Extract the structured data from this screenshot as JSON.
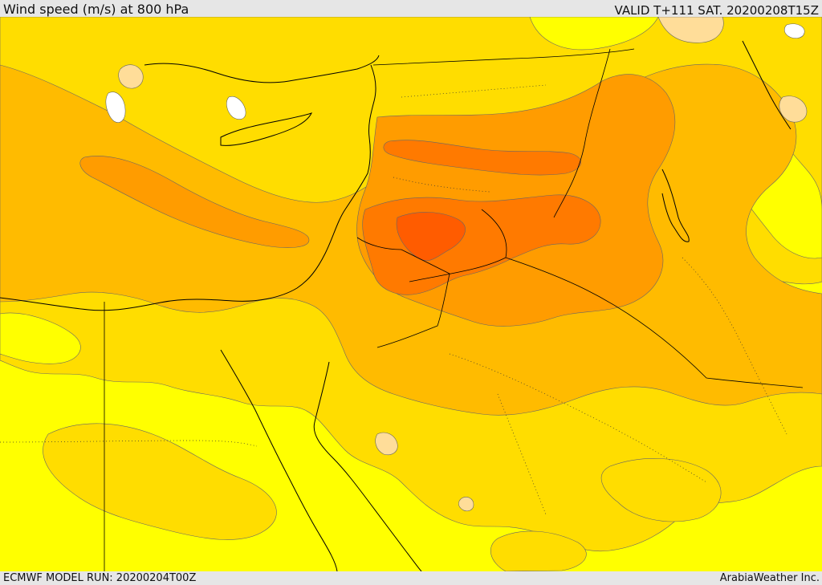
{
  "header": {
    "title": "Wind speed (m/s) at 800 hPa",
    "valid_time": "VALID T+111 SAT. 20200208T15Z"
  },
  "footer": {
    "model_run": "ECMWF MODEL RUN: 20200204T00Z",
    "credit": "ArabiaWeather Inc."
  },
  "map": {
    "variable": "wind speed",
    "units": "m/s",
    "pressure_level": "800 hPa",
    "colors": {
      "background": "#ffff00",
      "level_1": "#ffdd00",
      "level_2": "#ffbb00",
      "level_3": "#ff9c00",
      "level_4": "#ff7a00",
      "level_5": "#ff5c00",
      "low_wind": "#ffdd99",
      "calm": "#ffffff",
      "coastline": "#000000",
      "contour": "#555555"
    }
  }
}
